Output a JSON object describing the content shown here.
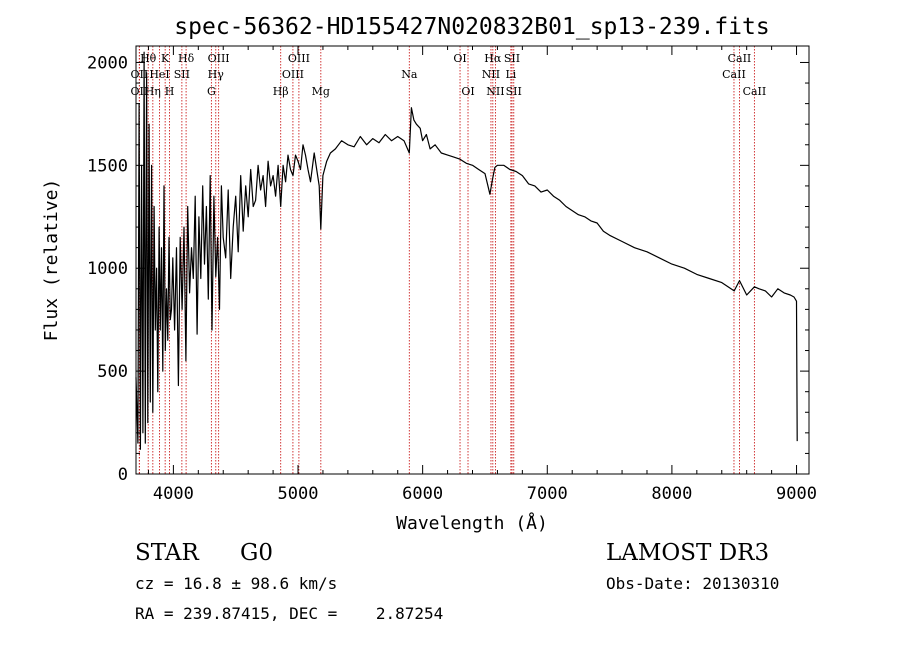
{
  "chart_data": {
    "type": "line",
    "title": "spec-56362-HD155427N020832B01_sp13-239.fits",
    "xlabel": "Wavelength (Å)",
    "ylabel": "Flux (relative)",
    "xlim": [
      3700,
      9100
    ],
    "ylim": [
      0,
      2080
    ],
    "xticks": [
      4000,
      5000,
      6000,
      7000,
      8000,
      9000
    ],
    "yticks": [
      0,
      500,
      1000,
      1500,
      2000
    ],
    "xtick_labels": [
      "4000",
      "5000",
      "6000",
      "7000",
      "8000",
      "9000"
    ],
    "ytick_labels": [
      "0",
      "500",
      "1000",
      "1500",
      "2000"
    ],
    "series": [
      {
        "name": "flux",
        "x": [
          3700,
          3715,
          3725,
          3735,
          3745,
          3755,
          3765,
          3775,
          3785,
          3795,
          3805,
          3815,
          3825,
          3835,
          3845,
          3855,
          3865,
          3875,
          3885,
          3895,
          3905,
          3915,
          3925,
          3935,
          3945,
          3955,
          3965,
          3975,
          3985,
          3995,
          4010,
          4025,
          4040,
          4055,
          4070,
          4085,
          4100,
          4115,
          4130,
          4145,
          4160,
          4175,
          4190,
          4205,
          4220,
          4235,
          4250,
          4265,
          4280,
          4295,
          4310,
          4325,
          4340,
          4355,
          4370,
          4385,
          4400,
          4420,
          4440,
          4460,
          4480,
          4500,
          4520,
          4540,
          4560,
          4580,
          4600,
          4620,
          4640,
          4660,
          4680,
          4700,
          4720,
          4740,
          4760,
          4780,
          4800,
          4820,
          4840,
          4861,
          4880,
          4900,
          4920,
          4940,
          4960,
          4980,
          5000,
          5020,
          5040,
          5060,
          5080,
          5100,
          5130,
          5150,
          5170,
          5183,
          5200,
          5230,
          5260,
          5300,
          5350,
          5400,
          5450,
          5500,
          5550,
          5600,
          5650,
          5700,
          5750,
          5800,
          5850,
          5893,
          5910,
          5930,
          5950,
          5980,
          6000,
          6030,
          6060,
          6100,
          6150,
          6200,
          6250,
          6300,
          6350,
          6400,
          6450,
          6500,
          6540,
          6563,
          6580,
          6600,
          6650,
          6700,
          6750,
          6800,
          6850,
          6900,
          6950,
          7000,
          7050,
          7100,
          7150,
          7200,
          7250,
          7300,
          7350,
          7400,
          7450,
          7500,
          7600,
          7700,
          7800,
          7900,
          8000,
          8100,
          8200,
          8300,
          8400,
          8500,
          8542,
          8600,
          8662,
          8700,
          8750,
          8800,
          8850,
          8900,
          8950,
          8980,
          9000,
          9005
        ],
        "values": [
          470,
          150,
          1800,
          120,
          1500,
          200,
          2050,
          150,
          1950,
          250,
          1700,
          350,
          1500,
          300,
          1300,
          700,
          1000,
          400,
          1200,
          700,
          1100,
          500,
          1400,
          600,
          900,
          650,
          1150,
          750,
          800,
          1050,
          700,
          1100,
          430,
          1150,
          800,
          1200,
          550,
          1300,
          880,
          1100,
          950,
          1350,
          680,
          1250,
          950,
          1400,
          1020,
          1300,
          850,
          1450,
          700,
          1350,
          960,
          1150,
          800,
          1400,
          1150,
          1050,
          1380,
          950,
          1200,
          1350,
          1080,
          1450,
          1180,
          1400,
          1250,
          1480,
          1300,
          1330,
          1500,
          1380,
          1450,
          1300,
          1520,
          1400,
          1450,
          1350,
          1500,
          1300,
          1500,
          1420,
          1550,
          1480,
          1450,
          1550,
          1520,
          1480,
          1600,
          1550,
          1480,
          1420,
          1560,
          1480,
          1400,
          1190,
          1450,
          1520,
          1560,
          1580,
          1620,
          1600,
          1590,
          1640,
          1600,
          1630,
          1610,
          1650,
          1620,
          1640,
          1620,
          1560,
          1780,
          1720,
          1700,
          1680,
          1620,
          1650,
          1580,
          1600,
          1560,
          1550,
          1540,
          1530,
          1510,
          1500,
          1480,
          1460,
          1360,
          1440,
          1490,
          1500,
          1500,
          1480,
          1470,
          1450,
          1410,
          1400,
          1370,
          1380,
          1350,
          1330,
          1300,
          1280,
          1260,
          1250,
          1230,
          1220,
          1180,
          1160,
          1130,
          1100,
          1080,
          1050,
          1020,
          1000,
          970,
          950,
          930,
          890,
          940,
          870,
          910,
          900,
          890,
          860,
          900,
          880,
          870,
          860,
          840,
          160
        ]
      }
    ],
    "line_markers": [
      {
        "label": "Hθ",
        "x": 3798,
        "row": 1
      },
      {
        "label": "OII",
        "x": 3727,
        "row": 2
      },
      {
        "label": "OII",
        "x": 3727,
        "row": 3
      },
      {
        "label": "Hη",
        "x": 3835,
        "row": 3
      },
      {
        "label": "HeI",
        "x": 3889,
        "row": 2
      },
      {
        "label": "K",
        "x": 3934,
        "row": 1
      },
      {
        "label": "SII",
        "x": 4068,
        "row": 2
      },
      {
        "label": "H",
        "x": 3969,
        "row": 3
      },
      {
        "label": "Hδ",
        "x": 4102,
        "row": 1
      },
      {
        "label": "OIII",
        "x": 4363,
        "row": 1
      },
      {
        "label": "Hγ",
        "x": 4340,
        "row": 2
      },
      {
        "label": "G",
        "x": 4305,
        "row": 3
      },
      {
        "label": "Hβ",
        "x": 4861,
        "row": 3
      },
      {
        "label": "OIII",
        "x": 5007,
        "row": 1
      },
      {
        "label": "OIII",
        "x": 4959,
        "row": 2
      },
      {
        "label": "Mg",
        "x": 5183,
        "row": 3
      },
      {
        "label": "Na",
        "x": 5893,
        "row": 2
      },
      {
        "label": "OI",
        "x": 6300,
        "row": 1
      },
      {
        "label": "OI",
        "x": 6364,
        "row": 3
      },
      {
        "label": "Hα",
        "x": 6563,
        "row": 1
      },
      {
        "label": "NII",
        "x": 6548,
        "row": 2
      },
      {
        "label": "NII",
        "x": 6584,
        "row": 3
      },
      {
        "label": "SII",
        "x": 6717,
        "row": 1
      },
      {
        "label": "Li",
        "x": 6708,
        "row": 2
      },
      {
        "label": "SII",
        "x": 6731,
        "row": 3
      },
      {
        "label": "CaII",
        "x": 8542,
        "row": 1
      },
      {
        "label": "CaII",
        "x": 8498,
        "row": 2
      },
      {
        "label": "CaII",
        "x": 8662,
        "row": 3
      }
    ]
  },
  "info": {
    "object_class": "STAR",
    "subclass": "G0",
    "survey": "LAMOST DR3",
    "cz_line": "cz = 16.8 ± 98.6 km/s",
    "obs_date": "Obs-Date: 20130310",
    "coords": "RA = 239.87415, DEC =    2.87254"
  },
  "colors": {
    "marker_line": "#cc2222",
    "axis": "#000000",
    "spectrum": "#000000",
    "background": "#ffffff"
  }
}
